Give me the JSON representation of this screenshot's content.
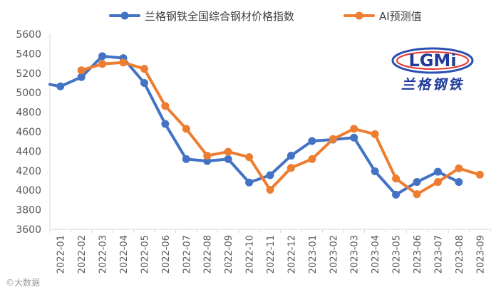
{
  "chart_data": {
    "type": "line",
    "title": "",
    "xlabel": "",
    "ylabel": "",
    "ylim": [
      3600,
      5600
    ],
    "yticks": [
      3600,
      3800,
      4000,
      4200,
      4400,
      4600,
      4800,
      5000,
      5200,
      5400,
      5600
    ],
    "grid": false,
    "legend_position": "top",
    "categories": [
      "2022-01",
      "2022-02",
      "2022-03",
      "2022-04",
      "2022-05",
      "2022-06",
      "2022-07",
      "2022-08",
      "2022-09",
      "2022-10",
      "2022-11",
      "2022-12",
      "2023-01",
      "2023-02",
      "2023-03",
      "2023-04",
      "2023-05",
      "2023-06",
      "2023-07",
      "2023-08",
      "2023-09"
    ],
    "series": [
      {
        "name": "兰格钢铁全国综合钢材价格指数",
        "color": "#4472C4",
        "start_value": 5085,
        "values": [
          5065,
          5160,
          5375,
          5355,
          5100,
          4680,
          4320,
          4300,
          4320,
          4080,
          4155,
          4355,
          4505,
          4520,
          4540,
          4195,
          3955,
          4085,
          4190,
          4085,
          null
        ]
      },
      {
        "name": "AI预测值",
        "color": "#ED7D31",
        "values": [
          null,
          5230,
          5295,
          5310,
          5245,
          4865,
          4630,
          4355,
          4395,
          4340,
          4005,
          4230,
          4320,
          4525,
          4630,
          4575,
          4120,
          3960,
          4085,
          4225,
          4160
        ]
      }
    ]
  },
  "logo": {
    "mark": "LGMi",
    "text": "兰格钢铁"
  },
  "watermark": "©大数据"
}
